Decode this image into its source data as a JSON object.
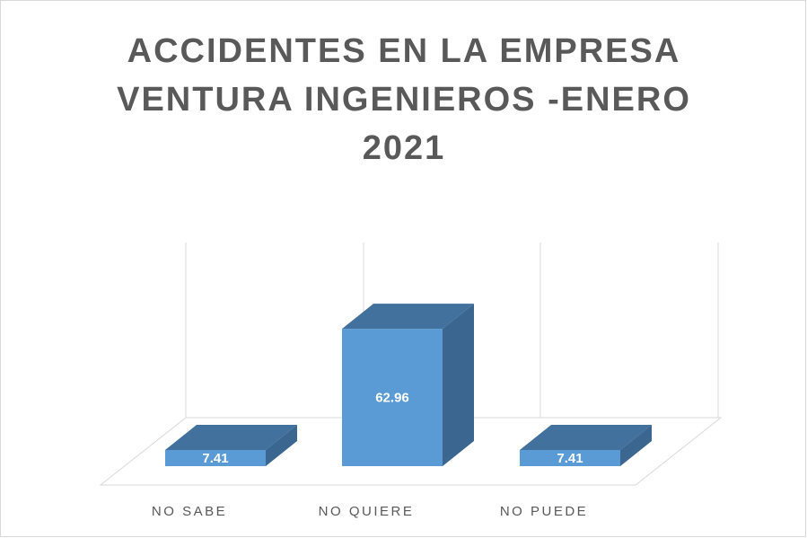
{
  "chart_data": {
    "type": "bar3d",
    "title": "ACCIDENTES EN LA EMPRESA VENTURA INGENIEROS -ENERO 2021",
    "categories": [
      "NO SABE",
      "NO QUIERE",
      "NO PUEDE"
    ],
    "values": [
      7.41,
      62.96,
      7.41
    ],
    "color": "#5b9bd5",
    "ylim": [
      0,
      70
    ]
  }
}
